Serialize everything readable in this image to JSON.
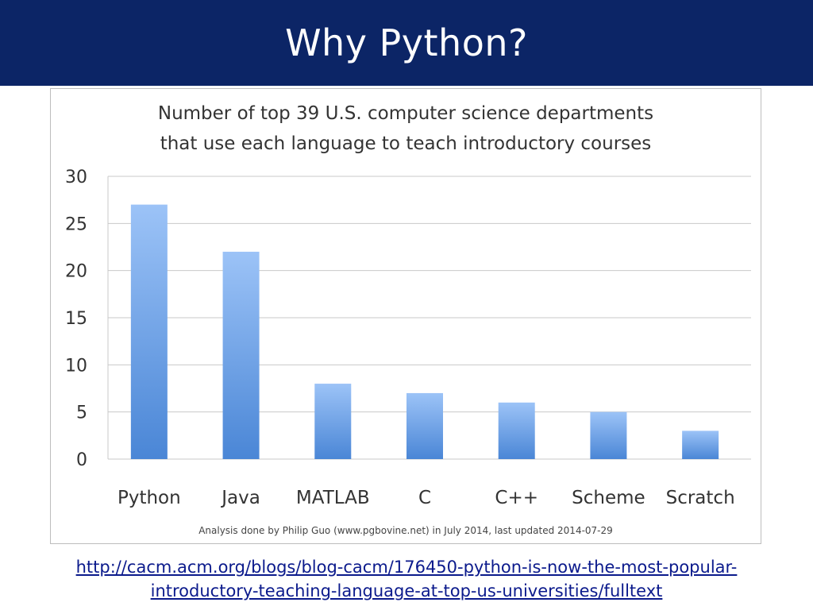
{
  "slide": {
    "title": "Why Python?",
    "link_line1": "http://cacm.acm.org/blogs/blog-cacm/176450-python-is-now-the-most-popular-",
    "link_line2": "introductory-teaching-language-at-top-us-universities/fulltext"
  },
  "colors": {
    "header_bg": "#0c2566",
    "bar_top": "#9cc3f7",
    "bar_bottom": "#4a86d6",
    "link": "#0b1a8c"
  },
  "chart_data": {
    "type": "bar",
    "title_line1": "Number of top 39 U.S. computer science departments",
    "title_line2": "that use each language to teach introductory courses",
    "categories": [
      "Python",
      "Java",
      "MATLAB",
      "C",
      "C++",
      "Scheme",
      "Scratch"
    ],
    "values": [
      27,
      22,
      8,
      7,
      6,
      5,
      3
    ],
    "yticks": [
      "0",
      "5",
      "10",
      "15",
      "20",
      "25",
      "30"
    ],
    "ylim": [
      0,
      30
    ],
    "grid": true,
    "legend": "none",
    "footnote": "Analysis done by Philip Guo (www.pgbovine.net) in July 2014, last updated 2014-07-29"
  }
}
